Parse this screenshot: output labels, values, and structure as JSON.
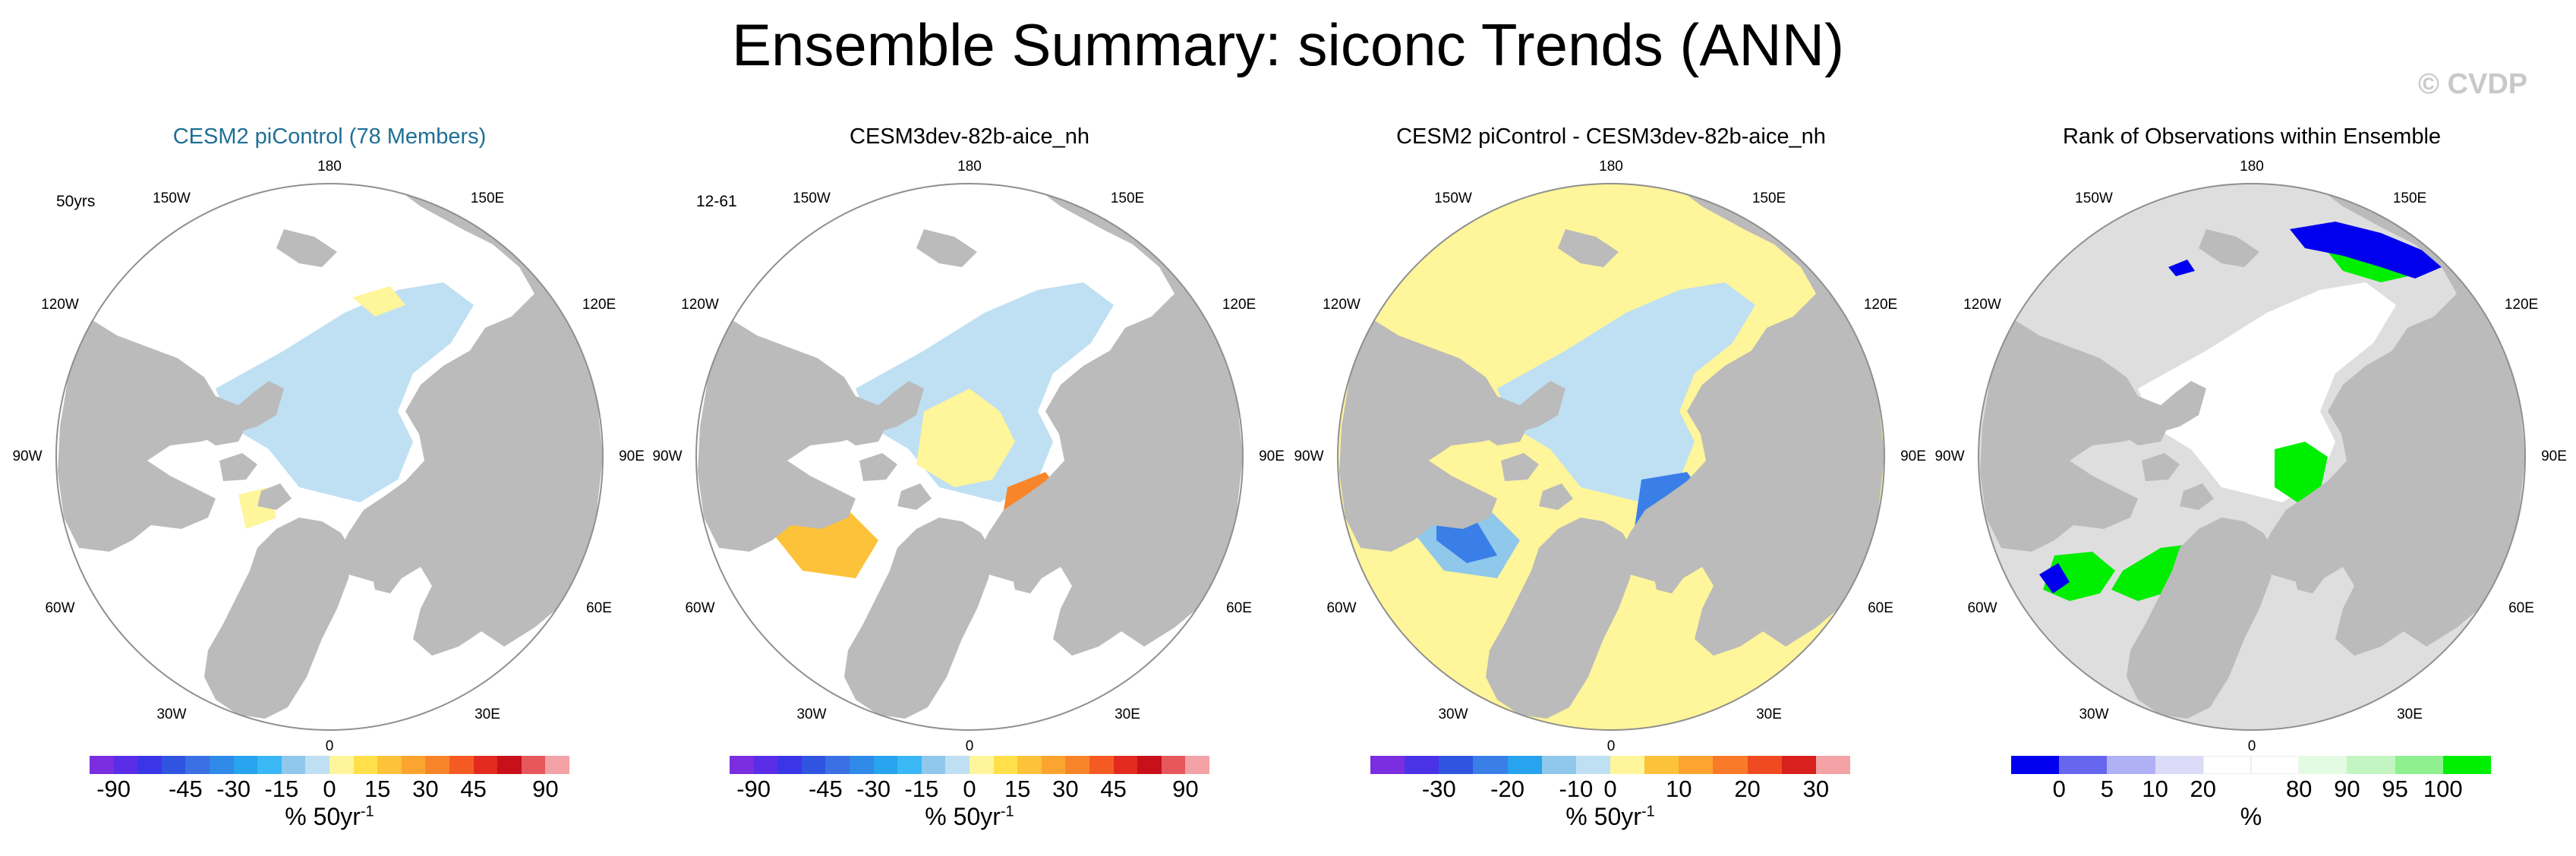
{
  "title": "Ensemble Summary: siconc Trends (ANN)",
  "watermark": "© CVDP",
  "lon_labels": {
    "p180": "180",
    "p150w": "150W",
    "p150e": "150E",
    "p120w": "120W",
    "p120e": "120E",
    "p90w": "90W",
    "p90e": "90E",
    "p60w": "60W",
    "p60e": "60E",
    "p30w": "30W",
    "p30e": "30E",
    "p0": "0"
  },
  "colors": {
    "land": "#bbbbbb",
    "ocean": "#ffffff",
    "outline": "#8f8f8f",
    "blue_light": "#bfe0f3",
    "yellow_light": "#fff59a",
    "grey_bg": "#dedede",
    "accent_title": "#1f6f94"
  },
  "panels": [
    {
      "title": "CESM2 piControl (78 Members)",
      "note": "50yrs"
    },
    {
      "title": "CESM3dev-82b-aice_nh",
      "note": "12-61"
    },
    {
      "title": "CESM2 piControl - CESM3dev-82b-aice_nh",
      "note": ""
    },
    {
      "title": "Rank of Observations within Ensemble",
      "note": ""
    }
  ],
  "chart_data": [
    {
      "type": "heatmap",
      "title": "CESM2 piControl (78 Members)",
      "projection": "north-polar-stereographic",
      "units": "% 50yr",
      "units_superscript": "-1",
      "tick_labels": [
        "-90",
        "-45",
        "-30",
        "-15",
        "0",
        "15",
        "30",
        "45",
        "90"
      ],
      "colorbar_colors": [
        "#7b2de0",
        "#5a2ee8",
        "#3a36e8",
        "#2f55e0",
        "#3a70e4",
        "#2f8ae8",
        "#28a3ee",
        "#3ab8f5",
        "#8fc8ea",
        "#bfe0f3",
        "#fff59a",
        "#ffe04a",
        "#fcc23a",
        "#fba530",
        "#f9852a",
        "#f55a22",
        "#e32a1e",
        "#c8101a",
        "#e6585c",
        "#f3a3a6"
      ],
      "summary": "weak trends: light blue (-15 to 0) over central Arctic, light yellow (0 to 15) patches"
    },
    {
      "type": "heatmap",
      "title": "CESM3dev-82b-aice_nh",
      "projection": "north-polar-stereographic",
      "units": "% 50yr",
      "units_superscript": "-1",
      "tick_labels": [
        "-90",
        "-45",
        "-30",
        "-15",
        "0",
        "15",
        "30",
        "45",
        "90"
      ],
      "colorbar_colors": [
        "#7b2de0",
        "#5a2ee8",
        "#3a36e8",
        "#2f55e0",
        "#3a70e4",
        "#2f8ae8",
        "#28a3ee",
        "#3ab8f5",
        "#8fc8ea",
        "#bfe0f3",
        "#fff59a",
        "#ffe04a",
        "#fcc23a",
        "#fba530",
        "#f9852a",
        "#f55a22",
        "#e32a1e",
        "#c8101a",
        "#e6585c",
        "#f3a3a6"
      ],
      "summary": "positive trends (up to 30-45) in Barents/Kara and Baffin/Labrador marginal seas"
    },
    {
      "type": "heatmap",
      "title": "CESM2 piControl - CESM3dev-82b-aice_nh",
      "projection": "north-polar-stereographic",
      "units": "% 50yr",
      "units_superscript": "-1",
      "tick_labels": [
        "-30",
        "-20",
        "-10",
        "0",
        "10",
        "20",
        "30"
      ],
      "colorbar_colors": [
        "#7b2de0",
        "#4a32e6",
        "#2f55e0",
        "#3a7fe8",
        "#28a3ee",
        "#8fc8ea",
        "#bfe0f3",
        "#fff59a",
        "#fcc23a",
        "#fba530",
        "#f97a28",
        "#f04a22",
        "#d8201c",
        "#f3a3a6"
      ],
      "summary": "negative differences (-10 to -20) in marginal seas, near-zero positive elsewhere"
    },
    {
      "type": "heatmap",
      "title": "Rank of Observations within Ensemble",
      "projection": "north-polar-stereographic",
      "units": "%",
      "units_superscript": "",
      "tick_labels": [
        "0",
        "5",
        "10",
        "20",
        "80",
        "90",
        "95",
        "100"
      ],
      "colorbar_colors": [
        "#0000ee",
        "#6666ee",
        "#b0b0f5",
        "#dcdcf8",
        "#ffffff",
        "#ffffff",
        "#e2fbe2",
        "#c2f5c2",
        "#8ef08e",
        "#00ee00"
      ],
      "summary": "central Arctic 20-80 (white); green (>95) and blue (<5) bands in marginal seas"
    }
  ]
}
